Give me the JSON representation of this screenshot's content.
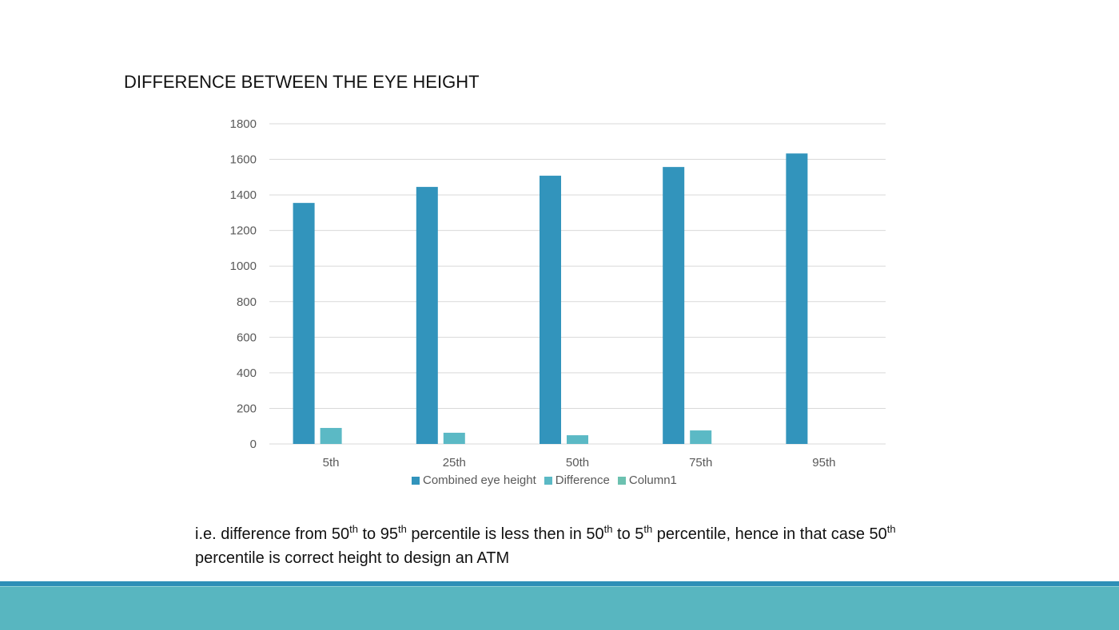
{
  "slide": {
    "title": "DIFFERENCE BETWEEN THE EYE HEIGHT",
    "caption": [
      {
        "t": "i.e. difference from 50"
      },
      {
        "sup": "th"
      },
      {
        "t": " to 95"
      },
      {
        "sup": "th"
      },
      {
        "t": " percentile is less then in 50"
      },
      {
        "sup": "th"
      },
      {
        "t": " to 5"
      },
      {
        "sup": "th"
      },
      {
        "t": " percentile, hence in that case 50"
      },
      {
        "sup": "th"
      },
      {
        "t": " percentile is correct height to design an ATM"
      }
    ]
  },
  "colors": {
    "combined": "#3294bc",
    "difference": "#5bb9c5",
    "column1": "#6cc1b0",
    "grid": "#d9d9d9",
    "footer_line": "#2e8fb7",
    "footer_band": "#58b6c0"
  },
  "chart_data": {
    "type": "bar",
    "title": "",
    "xlabel": "",
    "ylabel": "",
    "categories": [
      "5th",
      "25th",
      "50th",
      "75th",
      "95th"
    ],
    "series": [
      {
        "name": "Combined eye height",
        "values": [
          1355,
          1445,
          1508,
          1557,
          1633
        ]
      },
      {
        "name": "Difference",
        "values": [
          90,
          63,
          49,
          76,
          null
        ]
      },
      {
        "name": "Column1",
        "values": [
          null,
          null,
          null,
          null,
          null
        ]
      }
    ],
    "ylim": [
      0,
      1800
    ],
    "yticks": [
      0,
      200,
      400,
      600,
      800,
      1000,
      1200,
      1400,
      1600,
      1800
    ],
    "grid": true,
    "legend": "bottom"
  }
}
